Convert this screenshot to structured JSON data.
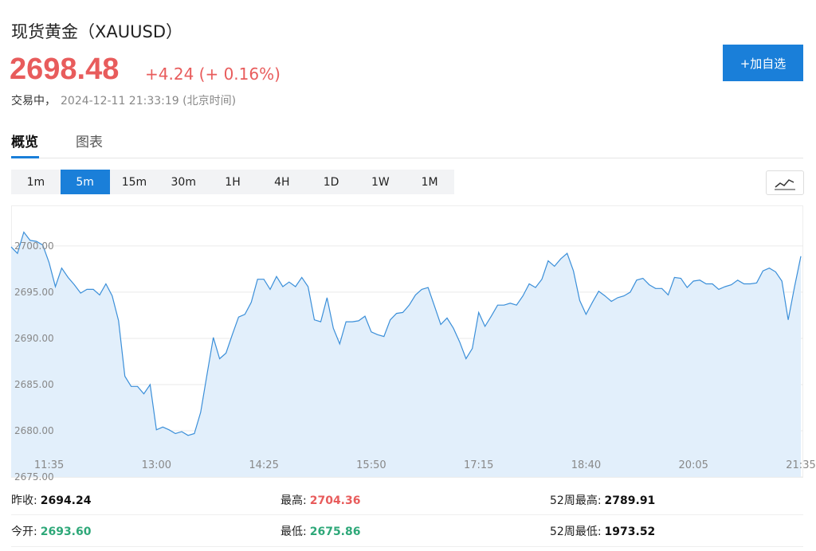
{
  "header": {
    "title": "现货黄金（XAUUSD）",
    "price": "2698.48",
    "change": "+4.24",
    "change_pct": "(+ 0.16%)",
    "status": "交易中，",
    "time": "2024-12-11 21:33:19 (北京时间)",
    "button": "+加自选"
  },
  "tabs": [
    "概览",
    "图表"
  ],
  "intervals": [
    "1m",
    "5m",
    "15m",
    "30m",
    "1H",
    "4H",
    "1D",
    "1W",
    "1M"
  ],
  "active_interval": 1,
  "chart_data": {
    "type": "area",
    "color": "#3b8fd9",
    "fill": "#e2effb",
    "categories": [
      null,
      null,
      null,
      null,
      null,
      null,
      "11:35",
      null,
      null,
      null,
      null,
      null,
      null,
      null,
      null,
      null,
      null,
      null,
      null,
      null,
      null,
      null,
      null,
      "13:00",
      null,
      null,
      null,
      null,
      null,
      null,
      null,
      null,
      null,
      null,
      null,
      null,
      null,
      null,
      null,
      null,
      "14:25",
      null,
      null,
      null,
      null,
      null,
      null,
      null,
      null,
      null,
      null,
      null,
      null,
      null,
      null,
      null,
      null,
      "15:50",
      null,
      null,
      null,
      null,
      null,
      null,
      null,
      null,
      null,
      null,
      null,
      null,
      null,
      null,
      null,
      null,
      "17:15",
      null,
      null,
      null,
      null,
      null,
      null,
      null,
      null,
      null,
      null,
      null,
      null,
      null,
      null,
      null,
      null,
      "18:40",
      null,
      null,
      null,
      null,
      null,
      null,
      null,
      null,
      null,
      null,
      null,
      null,
      null,
      null,
      null,
      null,
      "20:05",
      null,
      null,
      null,
      null,
      null,
      null,
      null,
      null,
      null,
      null,
      null,
      null,
      null,
      null,
      null,
      null,
      "21:35"
    ],
    "values": [
      2699.9,
      2699.2,
      2701.5,
      2700.6,
      2700.5,
      2700.1,
      2698.2,
      2695.6,
      2697.6,
      2696.6,
      2695.8,
      2694.9,
      2695.3,
      2695.3,
      2694.7,
      2695.9,
      2694.6,
      2691.9,
      2685.9,
      2684.8,
      2684.8,
      2684.0,
      2685.0,
      2680.1,
      2680.4,
      2680.1,
      2679.7,
      2679.9,
      2679.5,
      2679.7,
      2682.0,
      2686.1,
      2690.1,
      2687.8,
      2688.4,
      2690.4,
      2692.3,
      2692.6,
      2693.9,
      2696.4,
      2696.4,
      2695.3,
      2696.7,
      2695.6,
      2696.1,
      2695.6,
      2696.6,
      2695.6,
      2692.0,
      2691.8,
      2694.4,
      2691.1,
      2689.4,
      2691.8,
      2691.8,
      2691.9,
      2692.4,
      2690.7,
      2690.4,
      2690.2,
      2692.0,
      2692.7,
      2692.8,
      2693.6,
      2694.7,
      2695.3,
      2695.5,
      2693.5,
      2691.5,
      2692.2,
      2691.1,
      2689.6,
      2687.8,
      2688.9,
      2692.8,
      2691.3,
      2692.4,
      2693.6,
      2693.6,
      2693.8,
      2693.6,
      2694.6,
      2695.9,
      2695.5,
      2696.4,
      2698.4,
      2697.8,
      2698.6,
      2699.2,
      2697.3,
      2694.1,
      2692.6,
      2693.9,
      2695.1,
      2694.6,
      2694.0,
      2694.4,
      2694.6,
      2695.0,
      2696.3,
      2696.5,
      2695.8,
      2695.4,
      2695.4,
      2694.7,
      2696.6,
      2696.5,
      2695.5,
      2696.2,
      2696.3,
      2695.9,
      2695.9,
      2695.3,
      2695.6,
      2695.8,
      2696.3,
      2695.9,
      2695.9,
      2696.0,
      2697.3,
      2697.6,
      2697.2,
      2696.2,
      2692.0,
      2695.6,
      2698.9
    ],
    "ylim": [
      2675,
      2704.3
    ],
    "yticks": [
      {
        "value": 2675,
        "label": "2675.00"
      },
      {
        "value": 2680,
        "label": "2680.00"
      },
      {
        "value": 2685,
        "label": "2685.00"
      },
      {
        "value": 2690,
        "label": "2690.00"
      },
      {
        "value": 2695,
        "label": "2695.00"
      },
      {
        "value": 2700,
        "label": "2700.00"
      }
    ],
    "grid": true
  },
  "stats": [
    {
      "label": "昨收:",
      "value": "2694.24",
      "color": "#111111"
    },
    {
      "label": "最高:",
      "value": "2704.36",
      "color": "#e85c5c"
    },
    {
      "label": "52周最高:",
      "value": "2789.91",
      "color": "#111111"
    },
    {
      "label": "今开:",
      "value": "2693.60",
      "color": "#2ea879"
    },
    {
      "label": "最低:",
      "value": "2675.86",
      "color": "#2ea879"
    },
    {
      "label": "52周最低:",
      "value": "1973.52",
      "color": "#111111"
    }
  ]
}
